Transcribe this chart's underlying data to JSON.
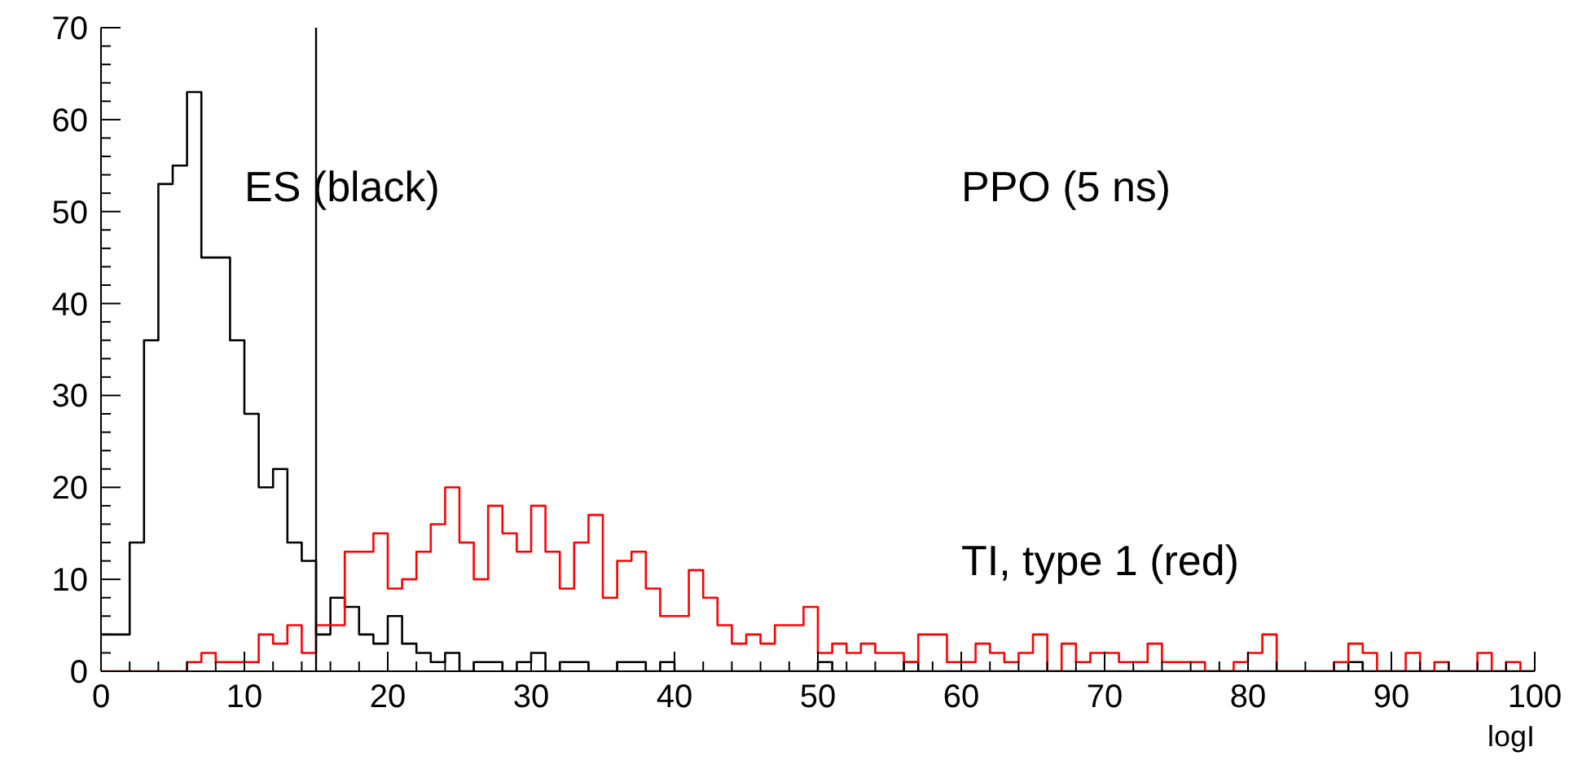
{
  "chart_data": {
    "type": "histogram",
    "xlabel": "logI",
    "bins": [
      0,
      1,
      2,
      3,
      4,
      5,
      6,
      7,
      8,
      9,
      10,
      11,
      12,
      13,
      14,
      15,
      16,
      17,
      18,
      19,
      20,
      21,
      22,
      23,
      24,
      25,
      26,
      27,
      28,
      29,
      30,
      31,
      32,
      33,
      34,
      35,
      36,
      37,
      38,
      39,
      40,
      41,
      42,
      43,
      44,
      45,
      46,
      47,
      48,
      49,
      50,
      51,
      52,
      53,
      54,
      55,
      56,
      57,
      58,
      59,
      60,
      61,
      62,
      63,
      64,
      65,
      66,
      67,
      68,
      69,
      70,
      71,
      72,
      73,
      74,
      75,
      76,
      77,
      78,
      79,
      80,
      81,
      82,
      83,
      84,
      85,
      86,
      87,
      88,
      89,
      90,
      91,
      92,
      93,
      94,
      95,
      96,
      97,
      98,
      99,
      100
    ],
    "series": [
      {
        "color": "#000000",
        "values": [
          4,
          4,
          14,
          36,
          53,
          55,
          63,
          45,
          45,
          36,
          28,
          20,
          22,
          14,
          12,
          4,
          8,
          7,
          4,
          3,
          6,
          3,
          2,
          1,
          2,
          0,
          1,
          1,
          0,
          1,
          2,
          0,
          1,
          1,
          0,
          0,
          1,
          1,
          0,
          1,
          0,
          0,
          0,
          0,
          0,
          0,
          0,
          0,
          0,
          0,
          1,
          0,
          0,
          0,
          0,
          0,
          1,
          0,
          0,
          0,
          0,
          0,
          0,
          0,
          0,
          0,
          0,
          0,
          0,
          0,
          0,
          0,
          0,
          0,
          0,
          0,
          0,
          0,
          0,
          0,
          0,
          0,
          0,
          0,
          0,
          0,
          0,
          1,
          0,
          0,
          0,
          0,
          0,
          0,
          0,
          0,
          0,
          0,
          0,
          0
        ]
      },
      {
        "color": "#ff0000",
        "values": [
          0,
          0,
          0,
          0,
          0,
          0,
          1,
          2,
          1,
          1,
          1,
          4,
          3,
          5,
          2,
          5,
          5,
          13,
          13,
          15,
          9,
          10,
          13,
          16,
          20,
          14,
          10,
          18,
          15,
          13,
          18,
          13,
          9,
          14,
          17,
          8,
          12,
          13,
          9,
          6,
          6,
          11,
          8,
          5,
          3,
          4,
          3,
          5,
          5,
          7,
          2,
          3,
          2,
          3,
          2,
          2,
          1,
          4,
          4,
          1,
          1,
          3,
          2,
          1,
          2,
          4,
          0,
          3,
          1,
          2,
          2,
          1,
          1,
          3,
          1,
          1,
          1,
          0,
          0,
          1,
          2,
          4,
          0,
          0,
          0,
          0,
          1,
          3,
          2,
          0,
          0,
          2,
          0,
          1,
          0,
          0,
          2,
          0,
          1,
          0
        ]
      }
    ],
    "xlim": [
      0,
      100
    ],
    "ylim": [
      0,
      70
    ],
    "xticks": [
      0,
      {
        "value": 2,
        "label": null
      },
      {
        "value": 4,
        "label": null
      },
      {
        "value": 6,
        "label": null
      },
      {
        "value": 8,
        "label": null
      },
      10,
      {
        "value": 12,
        "label": null
      },
      {
        "value": 14,
        "label": null
      },
      {
        "value": 16,
        "label": null
      },
      {
        "value": 18,
        "label": null
      },
      20,
      {
        "value": 22,
        "label": null
      },
      {
        "value": 24,
        "label": null
      },
      {
        "value": 26,
        "label": null
      },
      {
        "value": 28,
        "label": null
      },
      30,
      {
        "value": 32,
        "label": null
      },
      {
        "value": 34,
        "label": null
      },
      {
        "value": 36,
        "label": null
      },
      {
        "value": 38,
        "label": null
      },
      40,
      {
        "value": 42,
        "label": null
      },
      {
        "value": 44,
        "label": null
      },
      {
        "value": 46,
        "label": null
      },
      {
        "value": 48,
        "label": null
      },
      50,
      {
        "value": 52,
        "label": null
      },
      {
        "value": 54,
        "label": null
      },
      {
        "value": 56,
        "label": null
      },
      {
        "value": 58,
        "label": null
      },
      60,
      {
        "value": 62,
        "label": null
      },
      {
        "value": 64,
        "label": null
      },
      {
        "value": 66,
        "label": null
      },
      {
        "value": 68,
        "label": null
      },
      70,
      {
        "value": 72,
        "label": null
      },
      {
        "value": 74,
        "label": null
      },
      {
        "value": 76,
        "label": null
      },
      {
        "value": 78,
        "label": null
      },
      80,
      {
        "value": 82,
        "label": null
      },
      {
        "value": 84,
        "label": null
      },
      {
        "value": 86,
        "label": null
      },
      {
        "value": 88,
        "label": null
      },
      90,
      {
        "value": 92,
        "label": null
      },
      {
        "value": 94,
        "label": null
      },
      {
        "value": 96,
        "label": null
      },
      {
        "value": 98,
        "label": null
      },
      100
    ],
    "yticks": [
      0,
      {
        "value": 2,
        "label": null
      },
      {
        "value": 4,
        "label": null
      },
      {
        "value": 6,
        "label": null
      },
      {
        "value": 8,
        "label": null
      },
      10,
      {
        "value": 12,
        "label": null
      },
      {
        "value": 14,
        "label": null
      },
      {
        "value": 16,
        "label": null
      },
      {
        "value": 18,
        "label": null
      },
      20,
      {
        "value": 22,
        "label": null
      },
      {
        "value": 24,
        "label": null
      },
      {
        "value": 26,
        "label": null
      },
      {
        "value": 28,
        "label": null
      },
      30,
      {
        "value": 32,
        "label": null
      },
      {
        "value": 34,
        "label": null
      },
      {
        "value": 36,
        "label": null
      },
      {
        "value": 38,
        "label": null
      },
      40,
      {
        "value": 42,
        "label": null
      },
      {
        "value": 44,
        "label": null
      },
      {
        "value": 46,
        "label": null
      },
      {
        "value": 48,
        "label": null
      },
      50,
      {
        "value": 52,
        "label": null
      },
      {
        "value": 54,
        "label": null
      },
      {
        "value": 56,
        "label": null
      },
      {
        "value": 58,
        "label": null
      },
      60,
      {
        "value": 62,
        "label": null
      },
      {
        "value": 64,
        "label": null
      },
      {
        "value": 66,
        "label": null
      },
      {
        "value": 68,
        "label": null
      },
      70
    ],
    "ref_lines": [
      {
        "axis": "x",
        "value": 15,
        "color": "#000000"
      }
    ],
    "annotations": [
      "ES (black)",
      "PPO (5 ns)",
      "TI, type 1 (red)"
    ]
  }
}
